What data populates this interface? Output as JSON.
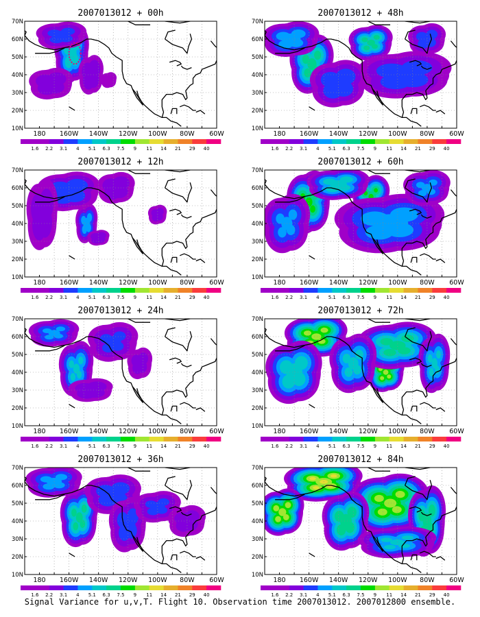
{
  "panels": [
    {
      "title": "2007013012 + 00h",
      "lead": "00h",
      "blobs": [
        {
          "cx": 158,
          "cy": 52,
          "rx": 11,
          "ry": 15,
          "lvl": 4.6
        },
        {
          "cx": 172,
          "cy": 35,
          "rx": 14,
          "ry": 8,
          "lvl": 1.4
        },
        {
          "cx": 145,
          "cy": 40,
          "rx": 8,
          "ry": 10,
          "lvl": 1.8
        },
        {
          "cx": 165,
          "cy": 62,
          "rx": 16,
          "ry": 7,
          "lvl": 2.2
        },
        {
          "cx": 133,
          "cy": 37,
          "rx": 5,
          "ry": 4,
          "lvl": 0.9
        }
      ],
      "contour": {
        "lon": 156,
        "lat": 52,
        "rlon": 4,
        "rlat": 6
      }
    },
    {
      "title": "2007013012 + 12h",
      "lead": "12h",
      "blobs": [
        {
          "cx": 160,
          "cy": 58,
          "rx": 20,
          "ry": 10,
          "lvl": 2.8
        },
        {
          "cx": 148,
          "cy": 40,
          "rx": 7,
          "ry": 10,
          "lvl": 3.4
        },
        {
          "cx": 178,
          "cy": 45,
          "rx": 10,
          "ry": 18,
          "lvl": 1.6
        },
        {
          "cx": 128,
          "cy": 60,
          "rx": 12,
          "ry": 8,
          "lvl": 1.6
        },
        {
          "cx": 140,
          "cy": 32,
          "rx": 7,
          "ry": 4,
          "lvl": 1.6
        },
        {
          "cx": 100,
          "cy": 45,
          "rx": 6,
          "ry": 5,
          "lvl": 1.2
        }
      ]
    },
    {
      "title": "2007013012 + 24h",
      "lead": "24h",
      "blobs": [
        {
          "cx": 155,
          "cy": 42,
          "rx": 11,
          "ry": 14,
          "lvl": 4.0
        },
        {
          "cx": 170,
          "cy": 62,
          "rx": 16,
          "ry": 7,
          "lvl": 3.0
        },
        {
          "cx": 130,
          "cy": 57,
          "rx": 16,
          "ry": 10,
          "lvl": 2.0
        },
        {
          "cx": 145,
          "cy": 30,
          "rx": 14,
          "ry": 6,
          "lvl": 1.6
        },
        {
          "cx": 112,
          "cy": 45,
          "rx": 8,
          "ry": 8,
          "lvl": 1.2
        }
      ]
    },
    {
      "title": "2007013012 + 36h",
      "lead": "36h",
      "blobs": [
        {
          "cx": 153,
          "cy": 42,
          "rx": 12,
          "ry": 15,
          "lvl": 5.2
        },
        {
          "cx": 170,
          "cy": 62,
          "rx": 18,
          "ry": 8,
          "lvl": 3.2
        },
        {
          "cx": 130,
          "cy": 55,
          "rx": 18,
          "ry": 10,
          "lvl": 2.6
        },
        {
          "cx": 120,
          "cy": 38,
          "rx": 12,
          "ry": 14,
          "lvl": 2.4
        },
        {
          "cx": 100,
          "cy": 48,
          "rx": 15,
          "ry": 8,
          "lvl": 2.0
        },
        {
          "cx": 80,
          "cy": 40,
          "rx": 12,
          "ry": 8,
          "lvl": 1.2
        }
      ]
    },
    {
      "title": "2007013012 + 48h",
      "lead": "48h",
      "blobs": [
        {
          "cx": 158,
          "cy": 46,
          "rx": 14,
          "ry": 15,
          "lvl": 5.4
        },
        {
          "cx": 118,
          "cy": 58,
          "rx": 14,
          "ry": 9,
          "lvl": 5.2
        },
        {
          "cx": 172,
          "cy": 60,
          "rx": 18,
          "ry": 9,
          "lvl": 3.6
        },
        {
          "cx": 95,
          "cy": 40,
          "rx": 30,
          "ry": 12,
          "lvl": 2.6
        },
        {
          "cx": 140,
          "cy": 35,
          "rx": 18,
          "ry": 12,
          "lvl": 2.8
        },
        {
          "cx": 80,
          "cy": 60,
          "rx": 12,
          "ry": 8,
          "lvl": 2.4
        }
      ]
    },
    {
      "title": "2007013012 + 60h",
      "lead": "60h",
      "blobs": [
        {
          "cx": 160,
          "cy": 52,
          "rx": 14,
          "ry": 16,
          "lvl": 6.2
        },
        {
          "cx": 118,
          "cy": 55,
          "rx": 12,
          "ry": 11,
          "lvl": 6.0
        },
        {
          "cx": 140,
          "cy": 62,
          "rx": 20,
          "ry": 8,
          "lvl": 4.6
        },
        {
          "cx": 105,
          "cy": 40,
          "rx": 35,
          "ry": 15,
          "lvl": 3.6
        },
        {
          "cx": 175,
          "cy": 40,
          "rx": 15,
          "ry": 15,
          "lvl": 3.0
        },
        {
          "cx": 80,
          "cy": 60,
          "rx": 15,
          "ry": 9,
          "lvl": 3.0
        }
      ]
    },
    {
      "title": "2007013012 + 72h",
      "lead": "72h",
      "blobs": [
        {
          "cx": 155,
          "cy": 60,
          "rx": 20,
          "ry": 11,
          "lvl": 7.4
        },
        {
          "cx": 108,
          "cy": 40,
          "rx": 12,
          "ry": 10,
          "lvl": 7.2
        },
        {
          "cx": 100,
          "cy": 55,
          "rx": 25,
          "ry": 12,
          "lvl": 5.4
        },
        {
          "cx": 170,
          "cy": 40,
          "rx": 18,
          "ry": 16,
          "lvl": 4.8
        },
        {
          "cx": 130,
          "cy": 45,
          "rx": 15,
          "ry": 15,
          "lvl": 4.2
        },
        {
          "cx": 75,
          "cy": 45,
          "rx": 10,
          "ry": 15,
          "lvl": 4.0
        }
      ]
    },
    {
      "title": "2007013012 + 84h",
      "lead": "84h",
      "blobs": [
        {
          "cx": 150,
          "cy": 62,
          "rx": 25,
          "ry": 10,
          "lvl": 8.0
        },
        {
          "cx": 178,
          "cy": 45,
          "rx": 14,
          "ry": 12,
          "lvl": 7.6
        },
        {
          "cx": 105,
          "cy": 50,
          "rx": 25,
          "ry": 15,
          "lvl": 7.4
        },
        {
          "cx": 135,
          "cy": 40,
          "rx": 15,
          "ry": 15,
          "lvl": 5.8
        },
        {
          "cx": 80,
          "cy": 40,
          "rx": 12,
          "ry": 18,
          "lvl": 5.6
        },
        {
          "cx": 100,
          "cy": 28,
          "rx": 25,
          "ry": 8,
          "lvl": 4.0
        }
      ]
    }
  ],
  "lat_labels": [
    "10N",
    "20N",
    "30N",
    "40N",
    "50N",
    "60N",
    "70N"
  ],
  "lon_labels": [
    "180",
    "160W",
    "140W",
    "120W",
    "100W",
    "80W",
    "60W"
  ],
  "colorbar": {
    "labels": [
      "1.6",
      "2.2",
      "3.1",
      "4",
      "5.1",
      "6.3",
      "7.5",
      "9",
      "11",
      "14",
      "21",
      "29",
      "40"
    ],
    "colors": [
      "#a000c8",
      "#8200dc",
      "#1e3cff",
      "#00a0ff",
      "#00c8c8",
      "#00d28c",
      "#00dc00",
      "#a0e632",
      "#e6dc32",
      "#e6af2d",
      "#f08228",
      "#fa3c3c",
      "#f00082"
    ]
  },
  "caption": "Signal Variance for u,v,T. Flight 10. Observation time 2007013012. 2007012800 ensemble."
}
